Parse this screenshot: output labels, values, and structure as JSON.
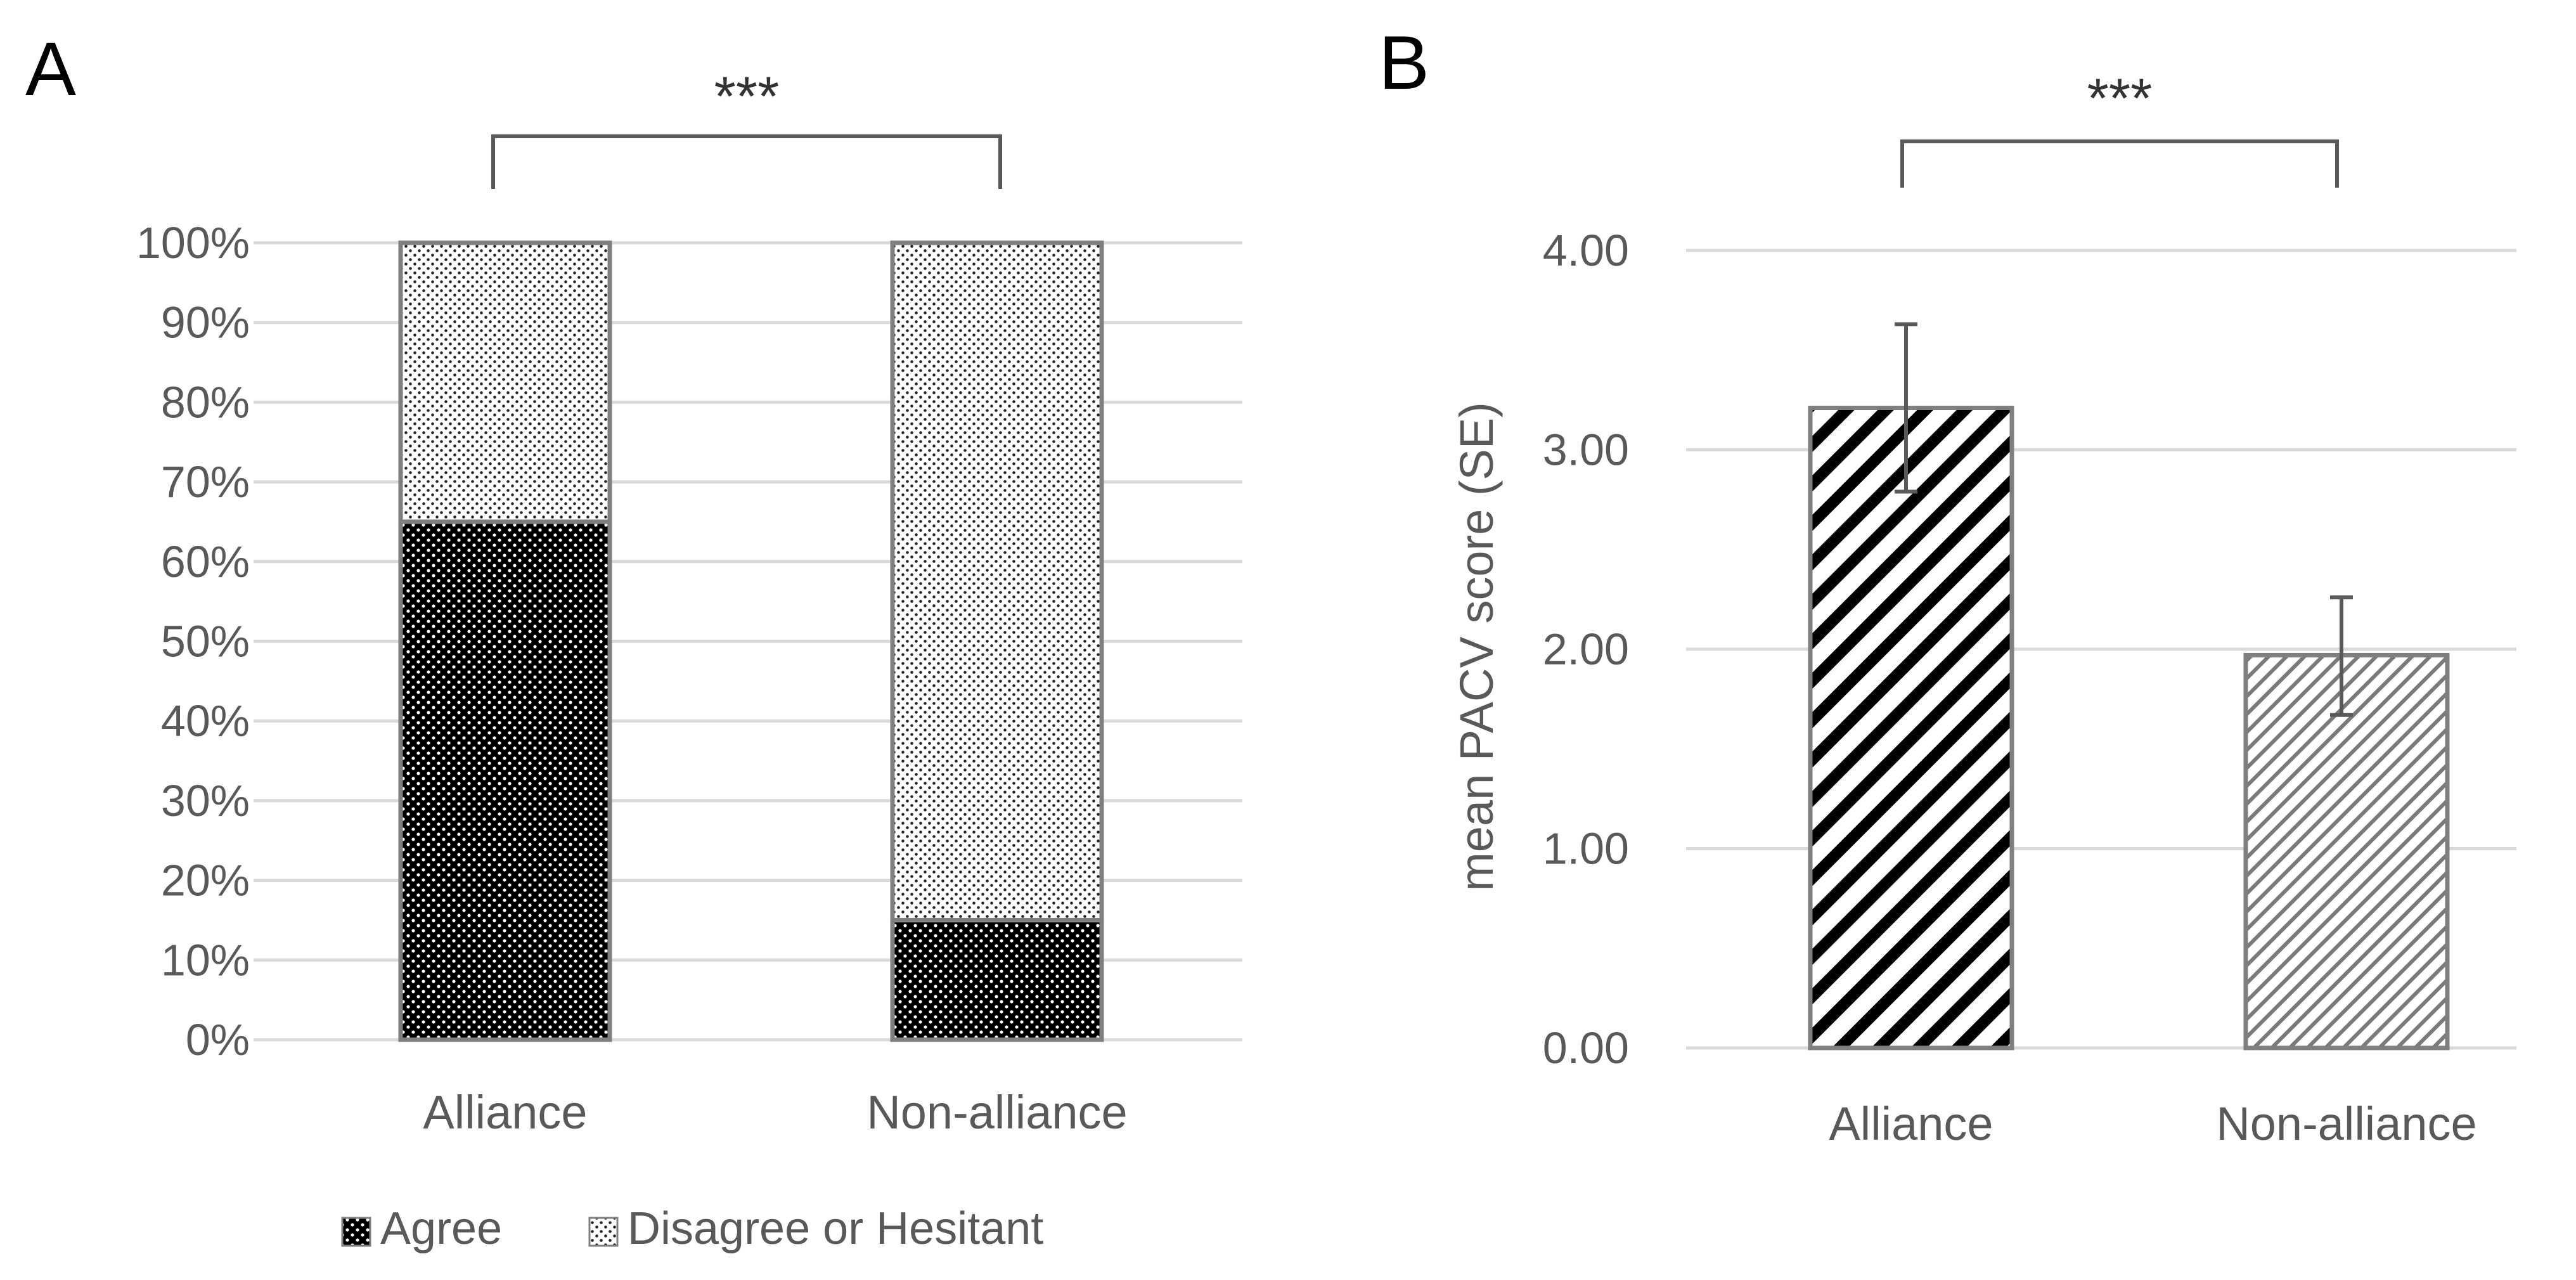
{
  "chart_data": [
    {
      "panel": "A",
      "type": "bar",
      "stacked": true,
      "categories": [
        "Alliance",
        "Non-alliance"
      ],
      "series": [
        {
          "name": "Agree",
          "values": [
            65,
            15
          ],
          "pattern": "dense-dots-dark"
        },
        {
          "name": "Disagree or Hesitant",
          "values": [
            35,
            85
          ],
          "pattern": "dots-light"
        }
      ],
      "yticks": [
        "0%",
        "10%",
        "20%",
        "30%",
        "40%",
        "50%",
        "60%",
        "70%",
        "80%",
        "90%",
        "100%"
      ],
      "ylim": [
        0,
        100
      ],
      "grid": true,
      "legend": "bottom",
      "significance": "***",
      "xlabel": "",
      "ylabel": ""
    },
    {
      "panel": "B",
      "type": "bar",
      "categories": [
        "Alliance",
        "Non-alliance"
      ],
      "values": [
        3.21,
        1.97
      ],
      "errors": [
        {
          "low": 2.79,
          "high": 3.63
        },
        {
          "low": 1.67,
          "high": 2.26
        }
      ],
      "patterns": [
        "wide-diagonal",
        "fine-diagonal"
      ],
      "yticks": [
        "0.00",
        "1.00",
        "2.00",
        "3.00",
        "4.00"
      ],
      "ylim": [
        0,
        4
      ],
      "grid": true,
      "significance": "***",
      "xlabel": "",
      "ylabel": "mean PACV score (SE)"
    }
  ],
  "colors": {
    "grid": "#d9d9d9",
    "axis_text": "#595959",
    "bar_outline": "#7f7f7f",
    "dark": "#000000",
    "light": "#ffffff"
  }
}
